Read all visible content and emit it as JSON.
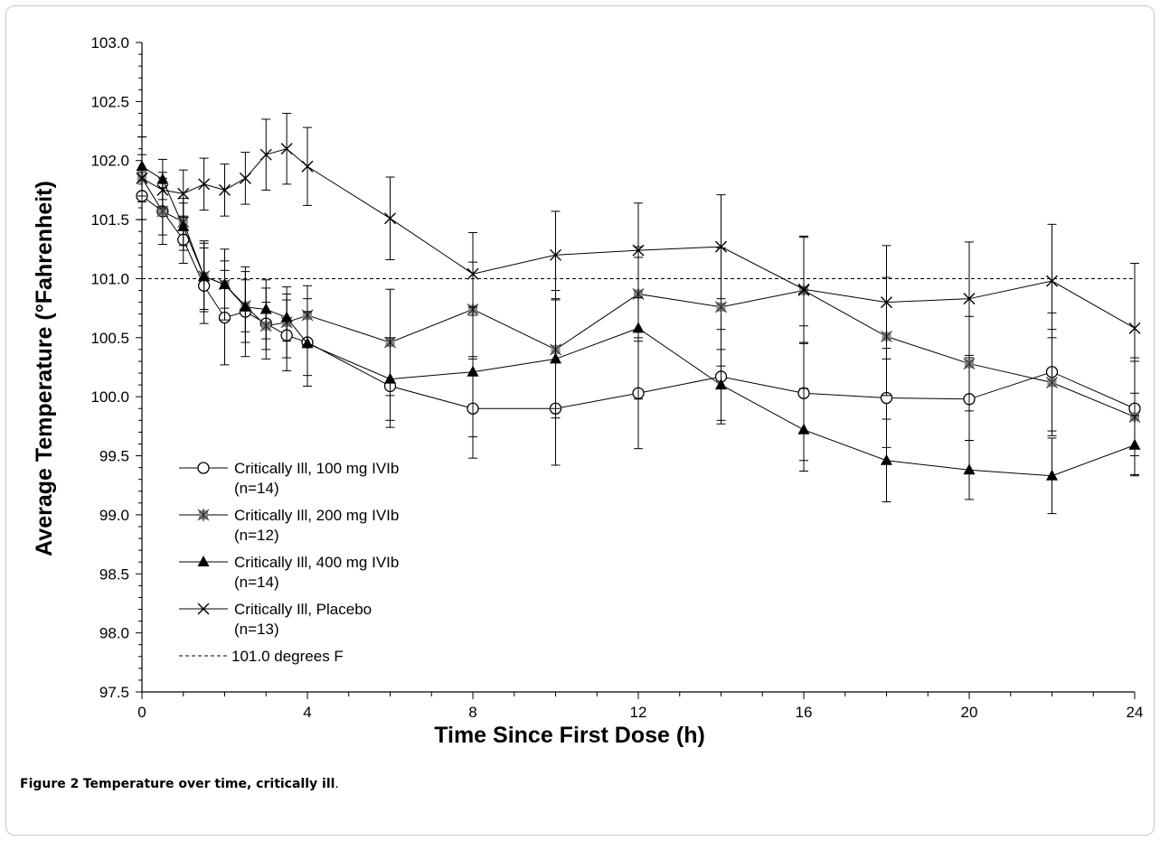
{
  "caption": {
    "label": "Figure 2",
    "text": "Temperature over time, critically ill",
    "end": "."
  },
  "chart_data": {
    "type": "line",
    "xlabel": "Time Since First Dose (h)",
    "ylabel": "Average Temperature (°Fahrenheit)",
    "xlim": [
      0,
      24
    ],
    "ylim": [
      97.5,
      103.0
    ],
    "x_ticks": [
      0,
      4,
      8,
      12,
      16,
      20,
      24
    ],
    "y_ticks": [
      97.5,
      98.0,
      98.5,
      99.0,
      99.5,
      100.0,
      100.5,
      101.0,
      101.5,
      102.0,
      102.5,
      103.0
    ],
    "grid": false,
    "legend_position": "lower-left",
    "reference_line": {
      "y": 101.0,
      "label": "101.0 degrees F",
      "style": "dashed"
    },
    "series": [
      {
        "name": "Critically Ill, 100 mg IVIb (n=14)",
        "name_lines": [
          "Critically Ill, 100 mg IVIb",
          "(n=14)"
        ],
        "marker": "circle-open",
        "color": "#000000",
        "x": [
          0,
          0.5,
          1,
          1.5,
          2,
          2.5,
          3,
          3.5,
          4,
          6,
          8,
          10,
          12,
          14,
          16,
          18,
          20,
          22,
          24
        ],
        "y": [
          101.7,
          101.57,
          101.33,
          100.94,
          100.67,
          100.72,
          100.62,
          100.52,
          100.46,
          100.09,
          99.9,
          99.9,
          100.03,
          100.17,
          100.03,
          99.99,
          99.98,
          100.21,
          99.9
        ],
        "err": [
          0.2,
          0.28,
          0.2,
          0.32,
          0.4,
          0.38,
          0.3,
          0.3,
          0.37,
          0.35,
          0.42,
          0.48,
          0.47,
          0.4,
          0.57,
          0.42,
          0.35,
          0.5,
          0.4
        ]
      },
      {
        "name": "Critically Ill, 200 mg IVIb (n=12)",
        "name_lines": [
          "Critically Ill, 200 mg IVIb",
          "(n=12)"
        ],
        "marker": "star-gray",
        "color": "#000000",
        "x": [
          0,
          0.5,
          1,
          1.5,
          2,
          2.5,
          3,
          3.5,
          4,
          6,
          8,
          10,
          12,
          14,
          16,
          18,
          20,
          22,
          24
        ],
        "y": [
          101.85,
          101.57,
          101.48,
          101.02,
          100.95,
          100.77,
          100.6,
          100.63,
          100.69,
          100.46,
          100.74,
          100.4,
          100.87,
          100.76,
          100.9,
          100.51,
          100.28,
          100.12,
          99.83
        ],
        "err": [
          0.2,
          0.2,
          0.2,
          0.28,
          0.3,
          0.22,
          0.2,
          0.3,
          0.25,
          0.45,
          0.4,
          0.5,
          0.4,
          0.5,
          0.45,
          0.5,
          0.4,
          0.45,
          0.5
        ]
      },
      {
        "name": "Critically Ill, 400 mg IVIb (n=14)",
        "name_lines": [
          "Critically Ill, 400 mg IVIb",
          "(n=14)"
        ],
        "marker": "triangle-filled",
        "color": "#000000",
        "x": [
          0,
          0.5,
          1,
          1.5,
          2,
          2.5,
          3,
          3.5,
          4,
          6,
          8,
          10,
          12,
          14,
          16,
          18,
          20,
          22,
          24
        ],
        "y": [
          101.95,
          101.84,
          101.44,
          101.02,
          100.95,
          100.76,
          100.74,
          100.67,
          100.45,
          100.15,
          100.21,
          100.32,
          100.58,
          100.1,
          99.72,
          99.46,
          99.38,
          99.33,
          99.59
        ],
        "err": [
          0.25,
          0.17,
          0.2,
          0.3,
          0.2,
          0.3,
          0.25,
          0.2,
          0.27,
          0.35,
          0.55,
          0.5,
          0.6,
          0.3,
          0.35,
          0.35,
          0.25,
          0.32,
          0.25
        ]
      },
      {
        "name": "Critically Ill, Placebo (n=13)",
        "name_lines": [
          "Critically Ill, Placebo",
          "(n=13)"
        ],
        "marker": "x",
        "color": "#000000",
        "x": [
          0,
          0.5,
          1,
          1.5,
          2,
          2.5,
          3,
          3.5,
          4,
          6,
          8,
          10,
          12,
          14,
          16,
          18,
          20,
          22,
          24
        ],
        "y": [
          101.85,
          101.75,
          101.72,
          101.8,
          101.75,
          101.85,
          102.05,
          102.1,
          101.95,
          101.51,
          101.04,
          101.2,
          101.24,
          101.27,
          100.91,
          100.8,
          100.83,
          100.98,
          100.58
        ],
        "err": [
          0.35,
          0.15,
          0.2,
          0.22,
          0.22,
          0.22,
          0.3,
          0.3,
          0.33,
          0.35,
          0.35,
          0.37,
          0.4,
          0.44,
          0.45,
          0.48,
          0.48,
          0.48,
          0.55
        ]
      }
    ]
  }
}
